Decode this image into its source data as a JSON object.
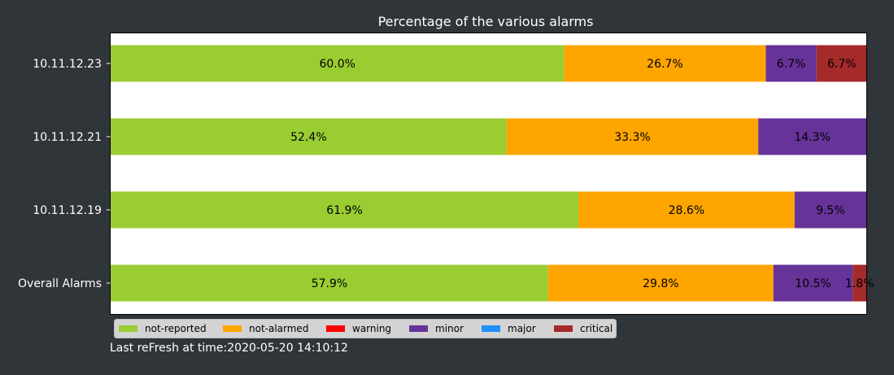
{
  "colors": {
    "background": "#30353a",
    "plot_background": "#ffffff",
    "text": "#ffffff",
    "bar_label": "#000000",
    "legend_background": "#d3d3d3"
  },
  "footer": {
    "refresh_text": "Last reFresh at time:2020-05-20 14:10:12"
  },
  "chart_data": {
    "type": "bar",
    "orientation": "horizontal",
    "stacked": true,
    "title": "Percentage of the various alarms",
    "xlabel": "",
    "ylabel": "",
    "xlim": [
      0,
      100
    ],
    "grid": false,
    "legend_position": "bottom-left",
    "categories": [
      "Overall Alarms",
      "10.11.12.19",
      "10.11.12.21",
      "10.11.12.23"
    ],
    "series": [
      {
        "name": "not-reported",
        "color": "#9acd32",
        "values": [
          57.9,
          61.9,
          52.4,
          60.0
        ],
        "labels": [
          "57.9%",
          "61.9%",
          "52.4%",
          "60.0%"
        ]
      },
      {
        "name": "not-alarmed",
        "color": "#ffa500",
        "values": [
          29.8,
          28.6,
          33.3,
          26.7
        ],
        "labels": [
          "29.8%",
          "28.6%",
          "33.3%",
          "26.7%"
        ]
      },
      {
        "name": "warning",
        "color": "#ff0000",
        "values": [
          0,
          0,
          0,
          0
        ],
        "labels": [
          "",
          "",
          "",
          ""
        ]
      },
      {
        "name": "minor",
        "color": "#663399",
        "values": [
          10.5,
          9.5,
          14.3,
          6.7
        ],
        "labels": [
          "10.5%",
          "9.5%",
          "14.3%",
          "6.7%"
        ]
      },
      {
        "name": "major",
        "color": "#1e90ff",
        "values": [
          0,
          0,
          0,
          0
        ],
        "labels": [
          "",
          "",
          "",
          ""
        ]
      },
      {
        "name": "critical",
        "color": "#a52a2a",
        "values": [
          1.8,
          0,
          0,
          6.7
        ],
        "labels": [
          "1.8%",
          "",
          "",
          "6.7%"
        ]
      }
    ]
  }
}
